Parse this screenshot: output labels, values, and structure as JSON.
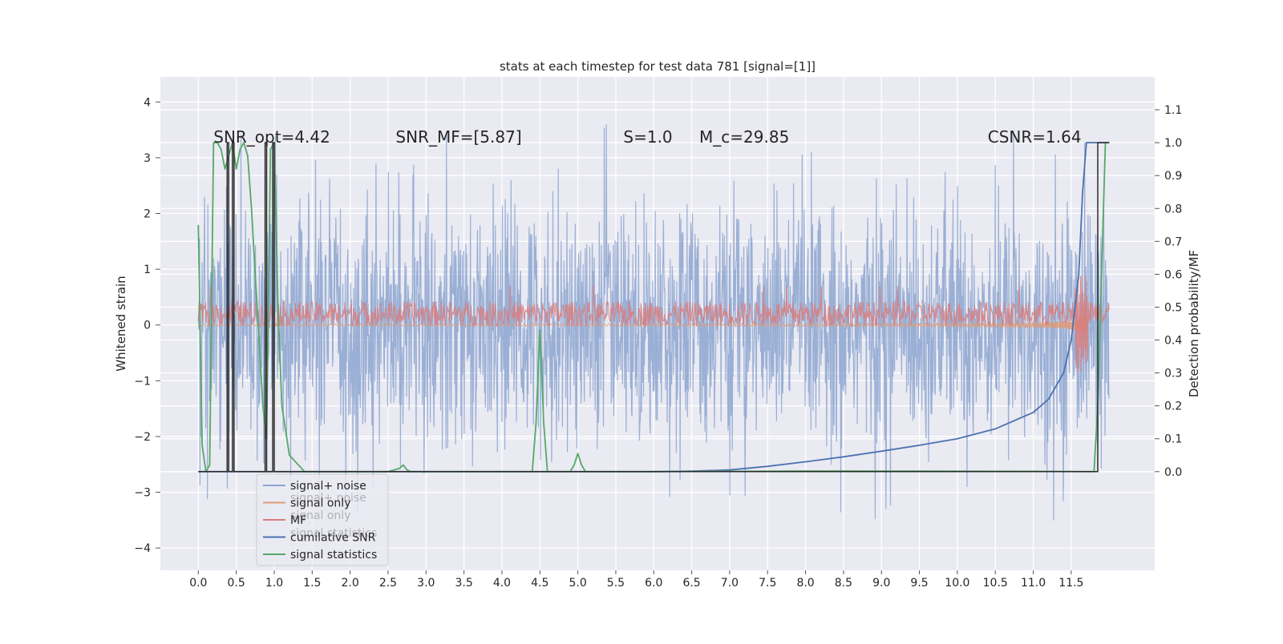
{
  "chart_data": {
    "type": "line",
    "title": "stats at each timestep for test data 781 [signal=[1]]",
    "xlabel": "",
    "ylabel_left": "Whitened strain",
    "ylabel_right": "Detection probability/MF",
    "xlim": [
      -0.5,
      12.6
    ],
    "ylim_left": [
      -4.4,
      4.45
    ],
    "ylim_right": [
      -0.3,
      1.2
    ],
    "x_ticks": [
      "0.0",
      "0.5",
      "1.0",
      "1.5",
      "2.0",
      "2.5",
      "3.0",
      "3.5",
      "4.0",
      "4.5",
      "5.0",
      "5.5",
      "6.0",
      "6.5",
      "7.0",
      "7.5",
      "8.0",
      "8.5",
      "9.0",
      "9.5",
      "10.0",
      "10.5",
      "11.0",
      "11.5"
    ],
    "x_tick_values": [
      0.0,
      0.5,
      1.0,
      1.5,
      2.0,
      2.5,
      3.0,
      3.5,
      4.0,
      4.5,
      5.0,
      5.5,
      6.0,
      6.5,
      7.0,
      7.5,
      8.0,
      8.5,
      9.0,
      9.5,
      10.0,
      10.5,
      11.0,
      11.5
    ],
    "y_ticks_left": [
      "−4",
      "−3",
      "−2",
      "−1",
      "0",
      "1",
      "2",
      "3",
      "4"
    ],
    "y_tick_values_left": [
      -4,
      -3,
      -2,
      -1,
      0,
      1,
      2,
      3,
      4
    ],
    "y_ticks_right": [
      "0.0",
      "0.1",
      "0.2",
      "0.3",
      "0.4",
      "0.5",
      "0.6",
      "0.7",
      "0.8",
      "0.9",
      "1.0",
      "1.1"
    ],
    "y_tick_values_right": [
      0.0,
      0.1,
      0.2,
      0.3,
      0.4,
      0.5,
      0.6,
      0.7,
      0.8,
      0.9,
      1.0,
      1.1
    ],
    "grid": true,
    "legend_position": "lower-left",
    "annotations": [
      {
        "text": "SNR_opt=4.42",
        "x": 0.2,
        "y_right": 1.0
      },
      {
        "text": "SNR_MF=[5.87]",
        "x": 2.6,
        "y_right": 1.0
      },
      {
        "text": "S=1.0",
        "x": 5.6,
        "y_right": 1.0
      },
      {
        "text": "M_c=29.85",
        "x": 6.6,
        "y_right": 1.0
      },
      {
        "text": "CSNR=1.64",
        "x": 10.4,
        "y_right": 1.0
      }
    ],
    "series": [
      {
        "name": "signal+ noise",
        "axis": "left",
        "color": "#8ca5d0",
        "style": "noise",
        "x_range": [
          0.0,
          12.0
        ],
        "amplitude_sigma": 1.0,
        "range": [
          -3.7,
          4.1
        ]
      },
      {
        "name": "signal only",
        "axis": "left",
        "color": "#dd9b7a",
        "style": "chirp",
        "x_range": [
          0.0,
          11.75
        ],
        "peak": 0.6
      },
      {
        "name": "MF",
        "axis": "left",
        "color": "#d87d7d",
        "style": "band",
        "x_range": [
          0.0,
          12.0
        ],
        "band": [
          0.0,
          0.55
        ]
      },
      {
        "name": "cumilative SNR",
        "axis": "right",
        "color": "#4c72b0",
        "x": [
          0.0,
          0.3,
          6.0,
          6.5,
          7.0,
          7.5,
          8.0,
          8.5,
          9.0,
          9.5,
          10.0,
          10.5,
          11.0,
          11.2,
          11.4,
          11.5,
          11.6,
          11.65,
          11.7,
          12.0
        ],
        "y": [
          0.0,
          0.0,
          0.0,
          0.0015,
          0.005,
          0.016,
          0.03,
          0.045,
          0.062,
          0.08,
          0.1,
          0.13,
          0.18,
          0.22,
          0.3,
          0.4,
          0.6,
          0.85,
          1.0,
          1.0
        ]
      },
      {
        "name": "signal statistics",
        "axis": "right",
        "color": "#55a868",
        "x": [
          0.0,
          0.05,
          0.1,
          0.15,
          0.2,
          0.25,
          0.3,
          0.35,
          0.4,
          0.45,
          0.5,
          0.55,
          0.6,
          0.65,
          0.7,
          0.75,
          0.8,
          0.85,
          0.9,
          0.95,
          1.0,
          1.05,
          1.1,
          1.2,
          1.4,
          1.6,
          1.8,
          2.0,
          2.5,
          2.65,
          2.7,
          2.75,
          2.8,
          3.0,
          3.5,
          4.0,
          4.4,
          4.45,
          4.5,
          4.55,
          4.6,
          4.9,
          4.95,
          5.0,
          5.05,
          5.1,
          5.5,
          6.0,
          8.0,
          11.0,
          11.8,
          11.85,
          11.9,
          11.95,
          12.0
        ],
        "y": [
          0.75,
          0.08,
          0.0,
          0.02,
          1.0,
          1.0,
          0.98,
          0.92,
          0.96,
          1.0,
          0.92,
          0.98,
          1.0,
          0.96,
          0.8,
          0.6,
          0.4,
          0.2,
          0.1,
          0.98,
          1.0,
          0.5,
          0.2,
          0.05,
          0.0,
          0.0,
          0.0,
          0.0,
          0.0,
          0.01,
          0.02,
          0.005,
          0.0,
          0.0,
          0.0,
          0.0,
          0.0,
          0.15,
          0.43,
          0.15,
          0.0,
          0.0,
          0.02,
          0.055,
          0.02,
          0.0,
          0.0,
          0.0,
          0.002,
          0.001,
          0.0,
          0.2,
          0.6,
          1.0,
          1.0
        ]
      },
      {
        "name": "",
        "axis": "right",
        "color": "#2b2b2b",
        "style": "steps",
        "x": [
          0.0,
          0.38,
          0.38,
          0.4,
          0.4,
          0.45,
          0.45,
          0.47,
          0.47,
          0.88,
          0.88,
          0.9,
          0.9,
          0.98,
          0.98,
          1.0,
          1.0,
          11.85,
          11.85,
          12.0
        ],
        "y": [
          0.0,
          0.0,
          1.0,
          1.0,
          0.0,
          0.0,
          1.0,
          1.0,
          0.0,
          0.0,
          1.0,
          1.0,
          0.0,
          0.0,
          1.0,
          1.0,
          0.0,
          0.0,
          1.0,
          1.0
        ]
      }
    ],
    "legend_overlap_labels": [
      "signal+ noise",
      "signal only",
      "signal statistics"
    ]
  }
}
